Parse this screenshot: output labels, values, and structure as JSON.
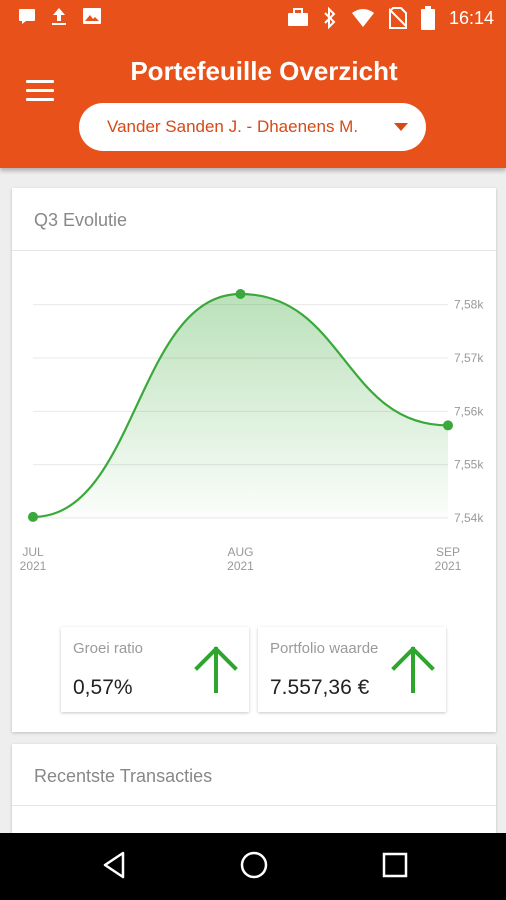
{
  "status_bar": {
    "time": "16:14",
    "left_icons": [
      "message-icon",
      "upload-icon",
      "image-icon"
    ],
    "right_icons": [
      "briefcase-icon",
      "bluetooth-icon",
      "wifi-icon",
      "no-sim-icon",
      "battery-icon"
    ]
  },
  "header": {
    "title": "Portefeuille Overzicht",
    "portfolio_selector": "Vander Sanden J. - Dhaenens M."
  },
  "evolution_card": {
    "title": "Q3 Evolutie",
    "growth": {
      "label": "Groei ratio",
      "value": "0,57%",
      "trend_icon": "arrow-up-icon"
    },
    "portfolio_value": {
      "label": "Portfolio waarde",
      "value": "7.557,36 €",
      "trend_icon": "arrow-up-icon"
    }
  },
  "transactions_card": {
    "title": "Recentste Transacties"
  },
  "colors": {
    "brand": "#e8521a",
    "line": "#3aa83a",
    "arrow": "#2ea62e"
  },
  "chart_data": {
    "type": "area",
    "categories": [
      "JUL\n2021",
      "AUG\n2021",
      "SEP\n2021"
    ],
    "x_ticks": [
      {
        "line1": "JUL",
        "line2": "2021"
      },
      {
        "line1": "AUG",
        "line2": "2021"
      },
      {
        "line1": "SEP",
        "line2": "2021"
      }
    ],
    "series": [
      {
        "values": [
          7540.2,
          7582,
          7557.36
        ]
      }
    ],
    "y_ticks": [
      "7,54k",
      "7,55k",
      "7,56k",
      "7,57k",
      "7,58k"
    ],
    "y_tick_values": [
      7540,
      7550,
      7560,
      7570,
      7580
    ],
    "ylim": [
      7540,
      7585
    ],
    "grid": true,
    "smooth": true
  }
}
